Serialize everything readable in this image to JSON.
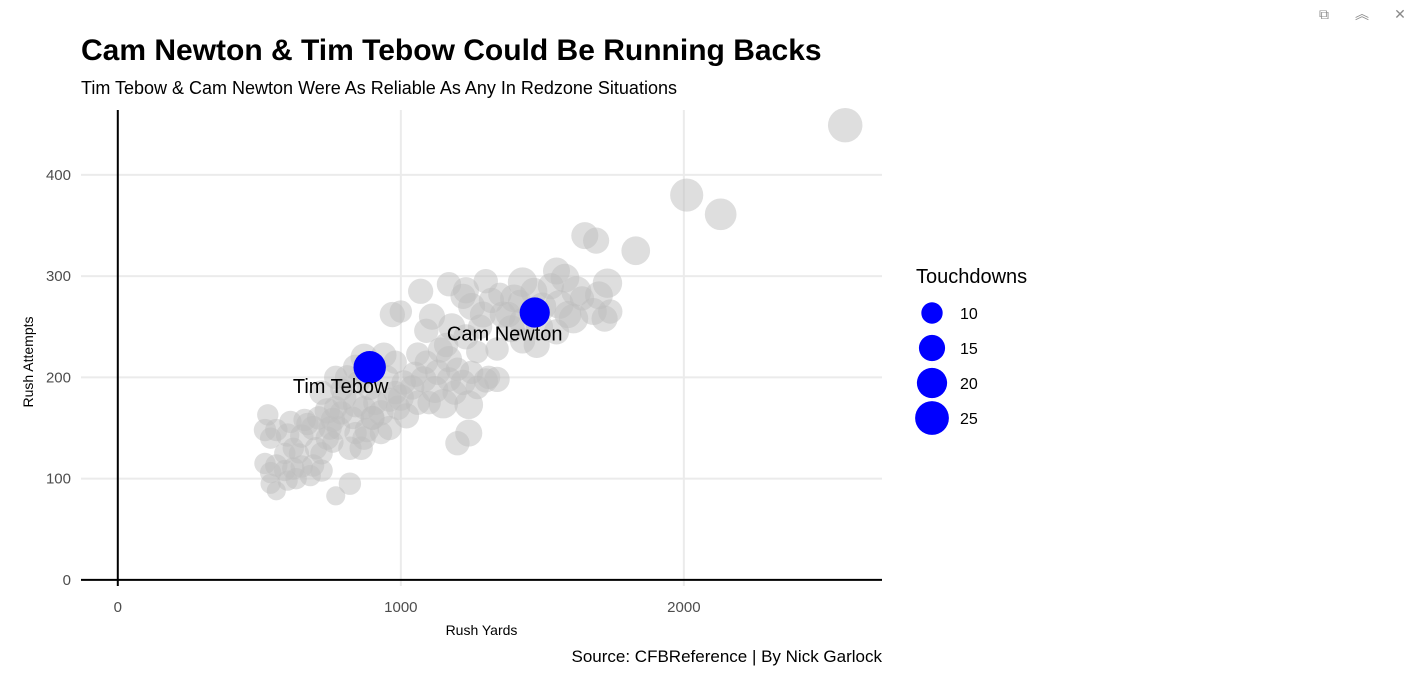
{
  "window_controls": [
    {
      "name": "popout-icon",
      "glyph": "⧉"
    },
    {
      "name": "collapse-icon",
      "glyph": "︽"
    },
    {
      "name": "close-icon",
      "glyph": "✕"
    }
  ],
  "chart_data": {
    "type": "scatter",
    "title": "Cam Newton & Tim Tebow Could Be Running Backs",
    "subtitle": "Tim Tebow & Cam Newton Were As Reliable As Any In Redzone Situations",
    "caption": "Source: CFBReference | By Nick Garlock",
    "xlabel": "Rush Yards",
    "ylabel": "Rush Attempts",
    "xlim": [
      -130,
      2700
    ],
    "ylim": [
      -6,
      464
    ],
    "xticks": [
      0,
      1000,
      2000
    ],
    "yticks": [
      0,
      100,
      200,
      300,
      400
    ],
    "grid": true,
    "legend": {
      "title": "Touchdowns",
      "position": "right",
      "entries": [
        {
          "label": "10",
          "value": 10
        },
        {
          "label": "15",
          "value": 15
        },
        {
          "label": "20",
          "value": 20
        },
        {
          "label": "25",
          "value": 25
        }
      ]
    },
    "colors": {
      "highlight": "#0000ff",
      "other": "#bdbdbd",
      "grid": "#ebebeb",
      "axis_line": "#000000"
    },
    "highlighted": [
      {
        "name": "Tim Tebow",
        "x": 890,
        "y": 210,
        "td": 23
      },
      {
        "name": "Cam Newton",
        "x": 1473,
        "y": 264,
        "td": 20
      }
    ],
    "series": [
      {
        "points": [
          [
            2570,
            449,
            26
          ],
          [
            2010,
            380,
            24
          ],
          [
            2130,
            361,
            22
          ],
          [
            1830,
            325,
            18
          ],
          [
            1650,
            340,
            16
          ],
          [
            1690,
            335,
            15
          ],
          [
            1550,
            305,
            16
          ],
          [
            1580,
            298,
            18
          ],
          [
            1620,
            285,
            20
          ],
          [
            1730,
            293,
            19
          ],
          [
            1700,
            281,
            17
          ],
          [
            1680,
            265,
            16
          ],
          [
            1720,
            258,
            15
          ],
          [
            1610,
            258,
            19
          ],
          [
            1560,
            272,
            18
          ],
          [
            1500,
            270,
            17
          ],
          [
            1470,
            285,
            16
          ],
          [
            1430,
            294,
            19
          ],
          [
            1400,
            278,
            17
          ],
          [
            1430,
            255,
            16
          ],
          [
            1360,
            262,
            15
          ],
          [
            1390,
            248,
            16
          ],
          [
            1430,
            236,
            14
          ],
          [
            1480,
            232,
            15
          ],
          [
            1490,
            250,
            16
          ],
          [
            1300,
            295,
            13
          ],
          [
            1320,
            276,
            14
          ],
          [
            1290,
            262,
            15
          ],
          [
            1220,
            280,
            14
          ],
          [
            1250,
            270,
            16
          ],
          [
            1230,
            286,
            15
          ],
          [
            1170,
            292,
            13
          ],
          [
            1230,
            240,
            14
          ],
          [
            1180,
            250,
            16
          ],
          [
            1170,
            218,
            15
          ],
          [
            1140,
            227,
            14
          ],
          [
            1090,
            246,
            13
          ],
          [
            1110,
            260,
            15
          ],
          [
            1070,
            285,
            14
          ],
          [
            1060,
            223,
            12
          ],
          [
            1130,
            205,
            14
          ],
          [
            1170,
            198,
            13
          ],
          [
            1220,
            195,
            14
          ],
          [
            1250,
            205,
            12
          ],
          [
            1190,
            185,
            13
          ],
          [
            1120,
            188,
            16
          ],
          [
            1150,
            174,
            19
          ],
          [
            1100,
            175,
            12
          ],
          [
            1080,
            198,
            15
          ],
          [
            1050,
            203,
            14
          ],
          [
            1010,
            195,
            13
          ],
          [
            980,
            215,
            12
          ],
          [
            940,
            222,
            14
          ],
          [
            870,
            220,
            16
          ],
          [
            840,
            210,
            14
          ],
          [
            810,
            200,
            13
          ],
          [
            770,
            200,
            12
          ],
          [
            1000,
            180,
            15
          ],
          [
            960,
            178,
            13
          ],
          [
            930,
            165,
            14
          ],
          [
            900,
            160,
            13
          ],
          [
            870,
            170,
            12
          ],
          [
            840,
            173,
            14
          ],
          [
            800,
            180,
            13
          ],
          [
            770,
            170,
            12
          ],
          [
            740,
            167,
            14
          ],
          [
            720,
            185,
            13
          ],
          [
            710,
            160,
            12
          ],
          [
            690,
            150,
            13
          ],
          [
            670,
            154,
            11
          ],
          [
            650,
            142,
            12
          ],
          [
            610,
            156,
            11
          ],
          [
            600,
            143,
            12
          ],
          [
            560,
            148,
            11
          ],
          [
            540,
            140,
            10
          ],
          [
            520,
            148,
            11
          ],
          [
            530,
            163,
            10
          ],
          [
            560,
            113,
            11
          ],
          [
            590,
            108,
            10
          ],
          [
            620,
            110,
            11
          ],
          [
            650,
            112,
            11
          ],
          [
            680,
            103,
            10
          ],
          [
            690,
            113,
            11
          ],
          [
            720,
            108,
            11
          ],
          [
            630,
            100,
            10
          ],
          [
            600,
            98,
            9
          ],
          [
            540,
            106,
            10
          ],
          [
            540,
            95,
            9
          ],
          [
            560,
            88,
            8
          ],
          [
            520,
            115,
            10
          ],
          [
            780,
            150,
            12
          ],
          [
            820,
            130,
            12
          ],
          [
            840,
            145,
            11
          ],
          [
            860,
            130,
            12
          ],
          [
            880,
            148,
            13
          ],
          [
            900,
            160,
            12
          ],
          [
            960,
            150,
            13
          ],
          [
            1020,
            162,
            14
          ],
          [
            1040,
            190,
            13
          ],
          [
            820,
            95,
            11
          ],
          [
            770,
            83,
            8
          ],
          [
            870,
            140,
            12
          ],
          [
            930,
            145,
            11
          ],
          [
            700,
            130,
            11
          ],
          [
            740,
            140,
            12
          ],
          [
            760,
            158,
            13
          ],
          [
            790,
            165,
            12
          ],
          [
            830,
            160,
            11
          ],
          [
            890,
            190,
            14
          ],
          [
            950,
            200,
            13
          ],
          [
            970,
            262,
            14
          ],
          [
            1000,
            265,
            11
          ],
          [
            1060,
            175,
            13
          ],
          [
            1200,
            135,
            13
          ],
          [
            1240,
            145,
            16
          ],
          [
            1240,
            173,
            18
          ],
          [
            1310,
            200,
            12
          ],
          [
            1340,
            198,
            14
          ],
          [
            1300,
            197,
            13
          ],
          [
            1270,
            190,
            12
          ],
          [
            660,
            158,
            11
          ],
          [
            620,
            130,
            10
          ],
          [
            640,
            125,
            9
          ],
          [
            590,
            125,
            10
          ],
          [
            720,
            125,
            11
          ],
          [
            760,
            136,
            10
          ],
          [
            750,
            150,
            12
          ],
          [
            790,
            188,
            11
          ],
          [
            850,
            195,
            12
          ],
          [
            910,
            175,
            13
          ],
          [
            980,
            185,
            12
          ],
          [
            990,
            170,
            13
          ],
          [
            1090,
            215,
            12
          ],
          [
            1160,
            232,
            13
          ],
          [
            1200,
            208,
            12
          ],
          [
            1270,
            225,
            11
          ],
          [
            1340,
            228,
            12
          ],
          [
            1380,
            262,
            14
          ],
          [
            1420,
            275,
            12
          ],
          [
            1530,
            290,
            15
          ],
          [
            1590,
            262,
            16
          ],
          [
            1550,
            245,
            14
          ],
          [
            1640,
            278,
            13
          ],
          [
            1740,
            265,
            13
          ],
          [
            1280,
            250,
            13
          ],
          [
            1350,
            282,
            12
          ]
        ]
      }
    ]
  }
}
